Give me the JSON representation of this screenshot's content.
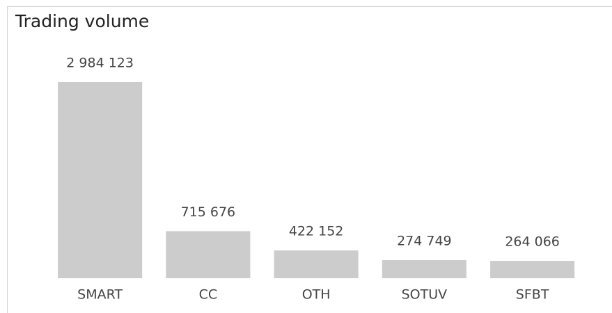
{
  "chart_data": {
    "type": "bar",
    "title": "Trading volume",
    "categories": [
      "SMART",
      "CC",
      "OTH",
      "SOTUV",
      "SFBT"
    ],
    "values": [
      2984123,
      715676,
      422152,
      274749,
      264066
    ],
    "value_labels": [
      "2 984 123",
      "715 676",
      "422 152",
      "274 749",
      "264 066"
    ],
    "color": "#cccccc"
  }
}
